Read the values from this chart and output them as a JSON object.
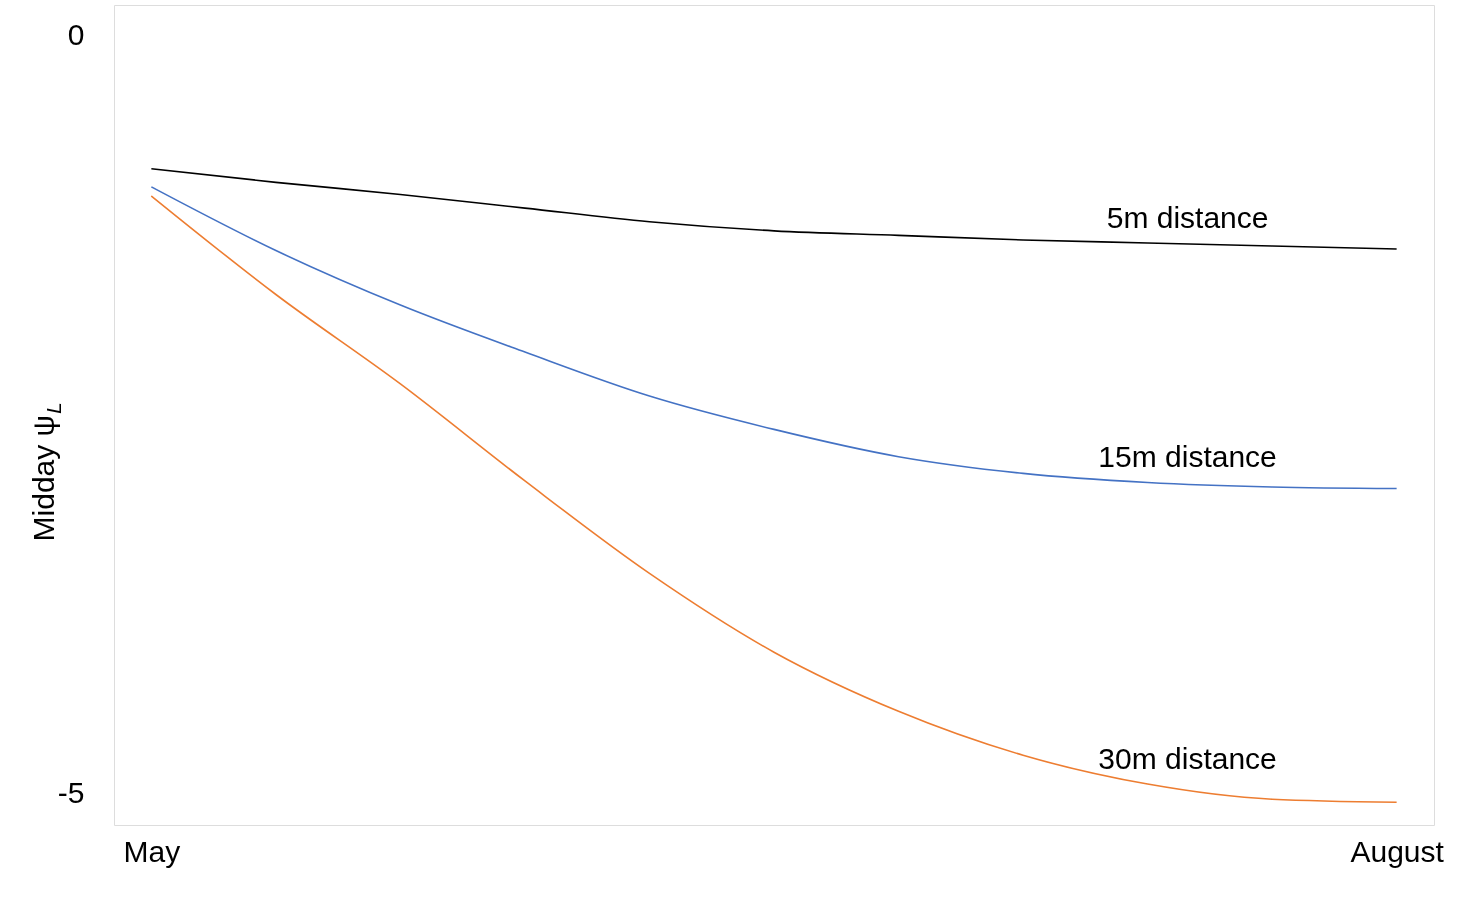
{
  "chart_data": {
    "type": "line",
    "ylabel": "Midday ψ$_{L}$",
    "categories": [
      "May",
      null,
      null,
      null,
      null,
      null,
      null,
      null,
      null,
      null,
      "August"
    ],
    "ylim": [
      -5.21,
      0.2
    ],
    "yticks": [
      {
        "value": 0,
        "label": "0"
      },
      {
        "value": -5,
        "label": "-5"
      }
    ],
    "grid": false,
    "marker": "none",
    "line_style": "solid",
    "series": [
      {
        "name": "5m distance",
        "color": "#000000",
        "values": [
          -0.88,
          -0.97,
          -1.05,
          -1.14,
          -1.23,
          -1.29,
          -1.32,
          -1.35,
          -1.37,
          -1.39,
          -1.41
        ]
      },
      {
        "name": "15m distance",
        "color": "#4472c4",
        "values": [
          -1.0,
          -1.42,
          -1.78,
          -2.09,
          -2.38,
          -2.6,
          -2.78,
          -2.89,
          -2.95,
          -2.98,
          -2.99
        ]
      },
      {
        "name": "30m distance",
        "color": "#ed7d31",
        "values": [
          -1.06,
          -1.71,
          -2.3,
          -2.94,
          -3.55,
          -4.07,
          -4.46,
          -4.75,
          -4.94,
          -5.04,
          -5.06
        ]
      }
    ]
  }
}
